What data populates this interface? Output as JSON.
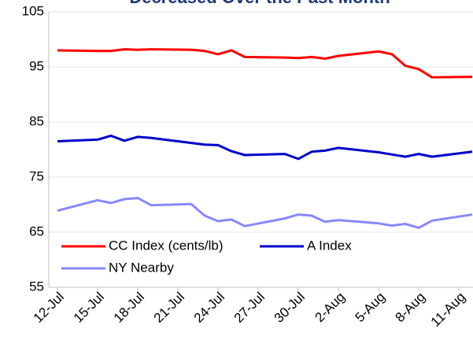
{
  "chart_data": {
    "type": "line",
    "title": "Decreased Over the Past Month",
    "x": [
      "12-Jul",
      "15-Jul",
      "16-Jul",
      "17-Jul",
      "18-Jul",
      "19-Jul",
      "22-Jul",
      "23-Jul",
      "24-Jul",
      "25-Jul",
      "26-Jul",
      "29-Jul",
      "30-Jul",
      "31-Jul",
      "1-Aug",
      "2-Aug",
      "5-Aug",
      "6-Aug",
      "7-Aug",
      "8-Aug",
      "9-Aug",
      "12-Aug"
    ],
    "series": [
      {
        "name": "CC Index (cents/lb)",
        "color": "#ff0000",
        "values": [
          98.0,
          97.9,
          97.9,
          98.2,
          98.1,
          98.2,
          98.1,
          97.9,
          97.3,
          98.0,
          96.8,
          96.7,
          96.6,
          96.8,
          96.5,
          97.0,
          97.8,
          97.3,
          95.2,
          94.6,
          93.1,
          93.2
        ]
      },
      {
        "name": "A Index",
        "color": "#0000cc",
        "values": [
          81.5,
          81.8,
          82.5,
          81.6,
          82.3,
          82.1,
          81.2,
          80.9,
          80.8,
          79.7,
          79.0,
          79.2,
          78.3,
          79.6,
          79.8,
          80.3,
          79.5,
          79.1,
          78.7,
          79.2,
          78.7,
          79.6
        ]
      },
      {
        "name": "NY Nearby",
        "color": "#8888ff",
        "values": [
          68.9,
          70.8,
          70.3,
          71.0,
          71.2,
          69.9,
          70.1,
          68.0,
          67.0,
          67.3,
          66.1,
          67.5,
          68.2,
          68.0,
          66.9,
          67.2,
          66.6,
          66.2,
          66.5,
          65.8,
          67.1,
          68.2
        ]
      }
    ],
    "xticks": [
      "12-Jul",
      "15-Jul",
      "18-Jul",
      "21-Jul",
      "24-Jul",
      "27-Jul",
      "30-Jul",
      "2-Aug",
      "5-Aug",
      "8-Aug",
      "11-Aug"
    ],
    "ylim": [
      55,
      105
    ],
    "yticks": [
      55,
      65,
      75,
      85,
      95,
      105
    ],
    "grid": true,
    "legend": "lower-left"
  }
}
